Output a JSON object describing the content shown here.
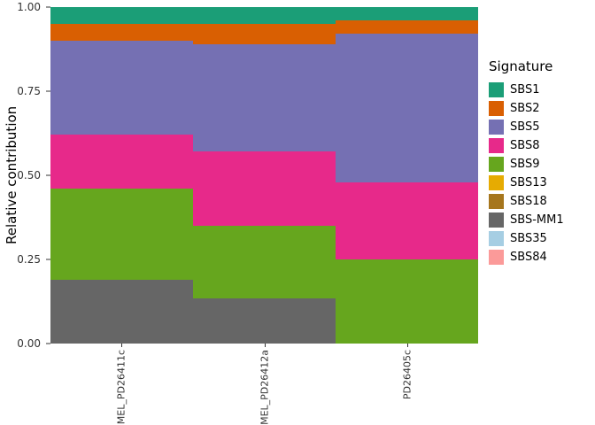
{
  "chart_data": {
    "type": "bar",
    "stacked": true,
    "title": "",
    "ylabel": "Relative contribution",
    "xlabel": "",
    "legend_title": "Signature",
    "legend_position": "right",
    "grid": false,
    "ylim": [
      0,
      1
    ],
    "yticks": [
      0,
      0.25,
      0.5,
      0.75,
      1.0
    ],
    "categories": [
      "MEL_PD26411c",
      "MEL_PD26412a",
      "PD26405c"
    ],
    "series": [
      {
        "name": "SBS1",
        "color": "#1B9E77",
        "values": [
          0.05,
          0.05,
          0.04
        ]
      },
      {
        "name": "SBS2",
        "color": "#D95F02",
        "values": [
          0.05,
          0.06,
          0.04
        ]
      },
      {
        "name": "SBS5",
        "color": "#7570B3",
        "values": [
          0.28,
          0.32,
          0.44
        ]
      },
      {
        "name": "SBS8",
        "color": "#E7298A",
        "values": [
          0.16,
          0.22,
          0.23
        ]
      },
      {
        "name": "SBS9",
        "color": "#66A61E",
        "values": [
          0.27,
          0.215,
          0.25
        ]
      },
      {
        "name": "SBS13",
        "color": "#E6AB02",
        "values": [
          0,
          0,
          0
        ]
      },
      {
        "name": "SBS18",
        "color": "#A6761D",
        "values": [
          0,
          0,
          0
        ]
      },
      {
        "name": "SBS-MM1",
        "color": "#666666",
        "values": [
          0.19,
          0.135,
          0
        ]
      },
      {
        "name": "SBS35",
        "color": "#A6CEE3",
        "values": [
          0,
          0,
          0
        ]
      },
      {
        "name": "SBS84",
        "color": "#FB9A99",
        "values": [
          0,
          0,
          0
        ]
      }
    ],
    "stack_order_bottom_to_top": [
      "SBS84",
      "SBS35",
      "SBS-MM1",
      "SBS18",
      "SBS13",
      "SBS9",
      "SBS8",
      "SBS5",
      "SBS2",
      "SBS1"
    ]
  }
}
